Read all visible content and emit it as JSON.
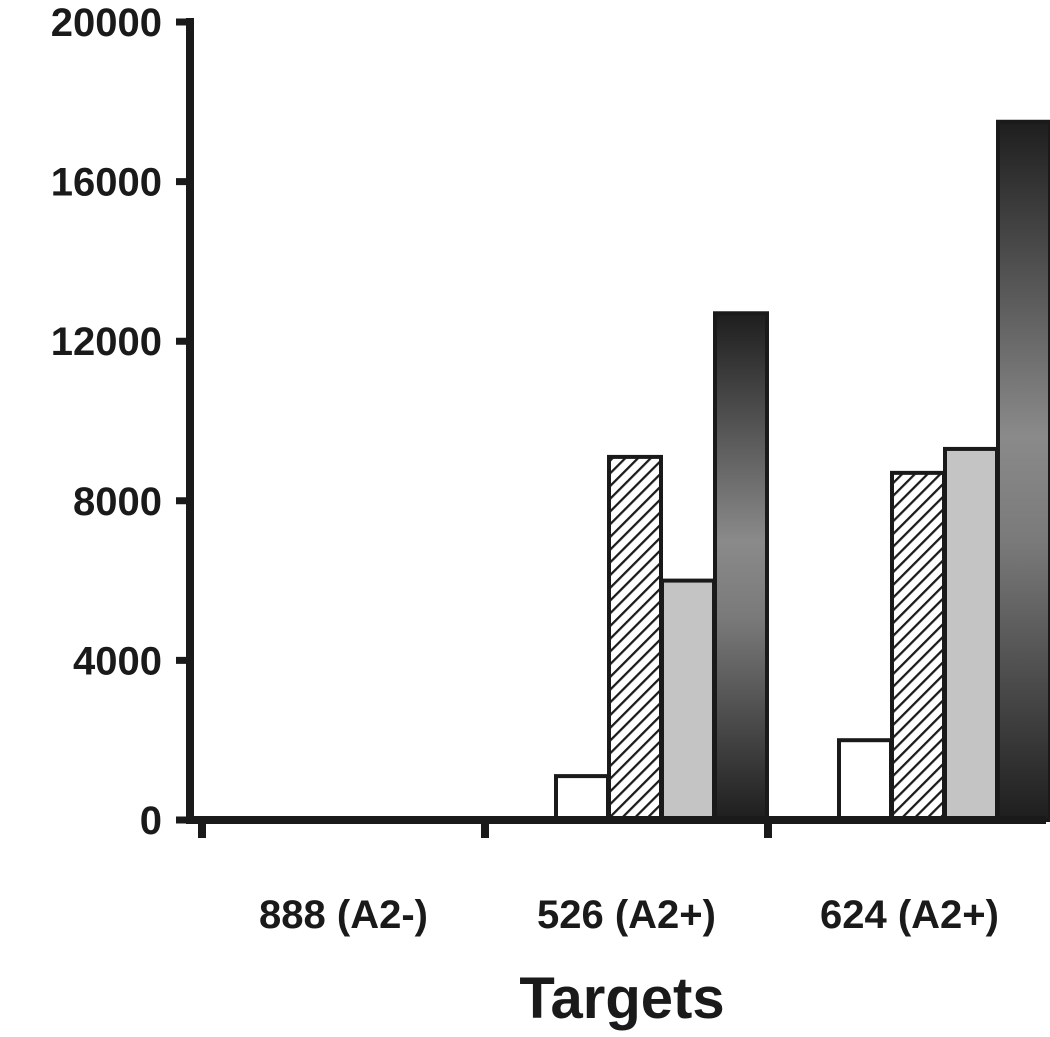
{
  "chart_data": {
    "type": "bar",
    "title": "",
    "xlabel": "Targets",
    "ylabel": "",
    "ylim": [
      0,
      20000
    ],
    "yticks": [
      0,
      4000,
      8000,
      12000,
      16000,
      20000
    ],
    "ytick_labels": [
      "0",
      "4000",
      "8000",
      "12000",
      "16000",
      "20000"
    ],
    "categories": [
      "888 (A2-)",
      "526 (A2+)",
      "624 (A2+)"
    ],
    "grid": false,
    "legend": "none",
    "series": [
      {
        "values": [
          0,
          1100,
          2000
        ],
        "fill": "white"
      },
      {
        "values": [
          0,
          9100,
          8700
        ],
        "fill": "diagonal-hatch"
      },
      {
        "values": [
          0,
          6000,
          9300
        ],
        "fill": "light-gray"
      },
      {
        "values": [
          0,
          12700,
          17500
        ],
        "fill": "dark-gradient"
      }
    ],
    "colors": {
      "axis": "#1a1a1a",
      "white_fill": "#ffffff",
      "light_gray_fill": "#c4c4c4",
      "hatch_line": "#1a1a1a",
      "gradient_dark": "#1e1e1e",
      "gradient_mid": "#8a8a8a"
    }
  }
}
